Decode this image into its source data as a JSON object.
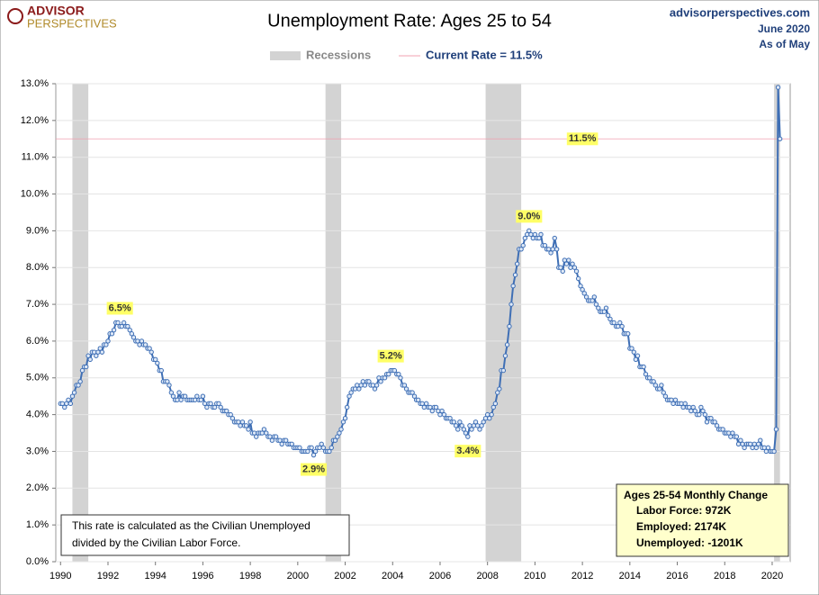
{
  "chart_data": {
    "type": "line",
    "title": "Unemployment Rate: Ages 25 to 54",
    "brand": {
      "top": "ADVISOR",
      "bottom": "PERSPECTIVES"
    },
    "source": {
      "site": "advisorperspectives.com",
      "date": "June 2020",
      "as_of": "As of May"
    },
    "recession_label": "Recessions",
    "recession_color": "#d3d3d3",
    "recessions": [
      [
        1990.5,
        1991.17
      ],
      [
        2001.17,
        2001.83
      ],
      [
        2007.92,
        2009.42
      ],
      [
        2020.08,
        2020.33
      ]
    ],
    "current_rate": {
      "value": 11.5,
      "label": "Current Rate = 11.5%",
      "color": "#f0a0b0"
    },
    "color": "#3f6fb5",
    "grid": true,
    "xlim": [
      1989.8,
      2020.76
    ],
    "ylim": [
      0,
      13
    ],
    "xticks": [
      1990,
      1992,
      1994,
      1996,
      1998,
      2000,
      2002,
      2004,
      2006,
      2008,
      2010,
      2012,
      2014,
      2016,
      2018,
      2020
    ],
    "yticks": [
      {
        "value": 0,
        "label": "0.0%"
      },
      {
        "value": 1,
        "label": "1.0%"
      },
      {
        "value": 2,
        "label": "2.0%"
      },
      {
        "value": 3,
        "label": "3.0%"
      },
      {
        "value": 4,
        "label": "4.0%"
      },
      {
        "value": 5,
        "label": "5.0%"
      },
      {
        "value": 6,
        "label": "6.0%"
      },
      {
        "value": 7,
        "label": "7.0%"
      },
      {
        "value": 8,
        "label": "8.0%"
      },
      {
        "value": 9,
        "label": "9.0%"
      },
      {
        "value": 10,
        "label": "10.0%"
      },
      {
        "value": 11,
        "label": "11.0%"
      },
      {
        "value": 12,
        "label": "12.0%"
      },
      {
        "value": 13,
        "label": "13.0%"
      }
    ],
    "annotations": [
      {
        "x": 1992.5,
        "value": 6.5,
        "label": "6.5%",
        "position": "above"
      },
      {
        "x": 2000.67,
        "value": 2.9,
        "label": "2.9%",
        "position": "below"
      },
      {
        "x": 2003.92,
        "value": 5.2,
        "label": "5.2%",
        "position": "above"
      },
      {
        "x": 2007.17,
        "value": 3.4,
        "label": "3.4%",
        "position": "below"
      },
      {
        "x": 2009.75,
        "value": 9.0,
        "label": "9.0%",
        "position": "above"
      },
      {
        "x": 2012.0,
        "value": 11.5,
        "label": "11.5%",
        "position": "center"
      }
    ],
    "note": [
      "This rate is calculated as the Civilian Unemployed",
      "divided by the Civilian Labor Force."
    ],
    "change_box": [
      "Ages 25-54 Monthly Change",
      "Labor Force:  972K",
      "Employed:  2174K",
      "Unemployed:  -1201K"
    ],
    "x": [
      1990,
      1990.08,
      1990.17,
      1990.25,
      1990.33,
      1990.42,
      1990.5,
      1990.58,
      1990.67,
      1990.75,
      1990.83,
      1990.92,
      1991,
      1991.08,
      1991.17,
      1991.25,
      1991.33,
      1991.42,
      1991.5,
      1991.58,
      1991.67,
      1991.75,
      1991.83,
      1991.92,
      1992,
      1992.08,
      1992.17,
      1992.25,
      1992.33,
      1992.42,
      1992.5,
      1992.58,
      1992.67,
      1992.75,
      1992.83,
      1992.92,
      1993,
      1993.08,
      1993.17,
      1993.25,
      1993.33,
      1993.42,
      1993.5,
      1993.58,
      1993.67,
      1993.75,
      1993.83,
      1993.92,
      1994,
      1994.08,
      1994.17,
      1994.25,
      1994.33,
      1994.42,
      1994.5,
      1994.58,
      1994.67,
      1994.75,
      1994.83,
      1994.92,
      1995,
      1995.08,
      1995.17,
      1995.25,
      1995.33,
      1995.42,
      1995.5,
      1995.58,
      1995.67,
      1995.75,
      1995.83,
      1995.92,
      1996,
      1996.08,
      1996.17,
      1996.25,
      1996.33,
      1996.42,
      1996.5,
      1996.58,
      1996.67,
      1996.75,
      1996.83,
      1996.92,
      1997,
      1997.08,
      1997.17,
      1997.25,
      1997.33,
      1997.42,
      1997.5,
      1997.58,
      1997.67,
      1997.75,
      1997.83,
      1997.92,
      1998,
      1998.08,
      1998.17,
      1998.25,
      1998.33,
      1998.42,
      1998.5,
      1998.58,
      1998.67,
      1998.75,
      1998.83,
      1998.92,
      1999,
      1999.08,
      1999.17,
      1999.25,
      1999.33,
      1999.42,
      1999.5,
      1999.58,
      1999.67,
      1999.75,
      1999.83,
      1999.92,
      2000,
      2000.08,
      2000.17,
      2000.25,
      2000.33,
      2000.42,
      2000.5,
      2000.58,
      2000.67,
      2000.75,
      2000.83,
      2000.92,
      2001,
      2001.08,
      2001.17,
      2001.25,
      2001.33,
      2001.42,
      2001.5,
      2001.58,
      2001.67,
      2001.75,
      2001.83,
      2001.92,
      2002,
      2002.08,
      2002.17,
      2002.25,
      2002.33,
      2002.42,
      2002.5,
      2002.58,
      2002.67,
      2002.75,
      2002.83,
      2002.92,
      2003,
      2003.08,
      2003.17,
      2003.25,
      2003.33,
      2003.42,
      2003.5,
      2003.58,
      2003.67,
      2003.75,
      2003.83,
      2003.92,
      2004,
      2004.08,
      2004.17,
      2004.25,
      2004.33,
      2004.42,
      2004.5,
      2004.58,
      2004.67,
      2004.75,
      2004.83,
      2004.92,
      2005,
      2005.08,
      2005.17,
      2005.25,
      2005.33,
      2005.42,
      2005.5,
      2005.58,
      2005.67,
      2005.75,
      2005.83,
      2005.92,
      2006,
      2006.08,
      2006.17,
      2006.25,
      2006.33,
      2006.42,
      2006.5,
      2006.58,
      2006.67,
      2006.75,
      2006.83,
      2006.92,
      2007,
      2007.08,
      2007.17,
      2007.25,
      2007.33,
      2007.42,
      2007.5,
      2007.58,
      2007.67,
      2007.75,
      2007.83,
      2007.92,
      2008,
      2008.08,
      2008.17,
      2008.25,
      2008.33,
      2008.42,
      2008.5,
      2008.58,
      2008.67,
      2008.75,
      2008.83,
      2008.92,
      2009,
      2009.08,
      2009.17,
      2009.25,
      2009.33,
      2009.42,
      2009.5,
      2009.58,
      2009.67,
      2009.75,
      2009.83,
      2009.92,
      2010,
      2010.08,
      2010.17,
      2010.25,
      2010.33,
      2010.42,
      2010.5,
      2010.58,
      2010.67,
      2010.75,
      2010.83,
      2010.92,
      2011,
      2011.08,
      2011.17,
      2011.25,
      2011.33,
      2011.42,
      2011.5,
      2011.58,
      2011.67,
      2011.75,
      2011.83,
      2011.92,
      2012,
      2012.08,
      2012.17,
      2012.25,
      2012.33,
      2012.42,
      2012.5,
      2012.58,
      2012.67,
      2012.75,
      2012.83,
      2012.92,
      2013,
      2013.08,
      2013.17,
      2013.25,
      2013.33,
      2013.42,
      2013.5,
      2013.58,
      2013.67,
      2013.75,
      2013.83,
      2013.92,
      2014,
      2014.08,
      2014.17,
      2014.25,
      2014.33,
      2014.42,
      2014.5,
      2014.58,
      2014.67,
      2014.75,
      2014.83,
      2014.92,
      2015,
      2015.08,
      2015.17,
      2015.25,
      2015.33,
      2015.42,
      2015.5,
      2015.58,
      2015.67,
      2015.75,
      2015.83,
      2015.92,
      2016,
      2016.08,
      2016.17,
      2016.25,
      2016.33,
      2016.42,
      2016.5,
      2016.58,
      2016.67,
      2016.75,
      2016.83,
      2016.92,
      2017,
      2017.08,
      2017.17,
      2017.25,
      2017.33,
      2017.42,
      2017.5,
      2017.58,
      2017.67,
      2017.75,
      2017.83,
      2017.92,
      2018,
      2018.08,
      2018.17,
      2018.25,
      2018.33,
      2018.42,
      2018.5,
      2018.58,
      2018.67,
      2018.75,
      2018.83,
      2018.92,
      2019,
      2019.08,
      2019.17,
      2019.25,
      2019.33,
      2019.42,
      2019.5,
      2019.58,
      2019.67,
      2019.75,
      2019.83,
      2019.92,
      2020,
      2020.08,
      2020.17,
      2020.25,
      2020.33
    ],
    "values": [
      4.3,
      4.3,
      4.2,
      4.3,
      4.4,
      4.3,
      4.5,
      4.6,
      4.8,
      4.8,
      4.9,
      5.2,
      5.3,
      5.3,
      5.6,
      5.5,
      5.7,
      5.7,
      5.6,
      5.7,
      5.8,
      5.7,
      5.9,
      5.9,
      6.0,
      6.2,
      6.2,
      6.3,
      6.5,
      6.5,
      6.4,
      6.4,
      6.5,
      6.4,
      6.4,
      6.3,
      6.2,
      6.1,
      6.0,
      6.0,
      5.9,
      6.0,
      5.9,
      5.9,
      5.8,
      5.8,
      5.7,
      5.5,
      5.5,
      5.4,
      5.2,
      5.2,
      4.9,
      4.9,
      4.9,
      4.8,
      4.6,
      4.5,
      4.4,
      4.4,
      4.6,
      4.4,
      4.5,
      4.5,
      4.4,
      4.4,
      4.4,
      4.4,
      4.4,
      4.5,
      4.4,
      4.4,
      4.5,
      4.3,
      4.2,
      4.3,
      4.3,
      4.2,
      4.2,
      4.3,
      4.3,
      4.2,
      4.1,
      4.1,
      4.1,
      4.0,
      4.0,
      3.9,
      3.8,
      3.8,
      3.8,
      3.7,
      3.8,
      3.7,
      3.7,
      3.6,
      3.8,
      3.5,
      3.5,
      3.4,
      3.5,
      3.5,
      3.5,
      3.6,
      3.5,
      3.4,
      3.4,
      3.3,
      3.4,
      3.4,
      3.3,
      3.3,
      3.2,
      3.3,
      3.3,
      3.2,
      3.2,
      3.2,
      3.1,
      3.1,
      3.1,
      3.1,
      3.0,
      3.0,
      3.0,
      3.0,
      3.1,
      3.1,
      2.9,
      3.0,
      3.1,
      3.1,
      3.2,
      3.1,
      3.0,
      3.0,
      3.0,
      3.1,
      3.3,
      3.3,
      3.4,
      3.5,
      3.6,
      3.8,
      3.9,
      4.2,
      4.5,
      4.6,
      4.7,
      4.7,
      4.8,
      4.7,
      4.8,
      4.9,
      4.8,
      4.9,
      4.9,
      4.8,
      4.8,
      4.7,
      4.8,
      5.0,
      4.9,
      5.0,
      5.0,
      5.1,
      5.1,
      5.2,
      5.2,
      5.2,
      5.1,
      5.1,
      5.0,
      4.8,
      4.8,
      4.7,
      4.6,
      4.6,
      4.6,
      4.5,
      4.4,
      4.4,
      4.3,
      4.3,
      4.2,
      4.3,
      4.2,
      4.2,
      4.1,
      4.2,
      4.2,
      4.1,
      4.0,
      4.1,
      4.0,
      3.9,
      3.9,
      3.9,
      3.8,
      3.8,
      3.7,
      3.6,
      3.8,
      3.7,
      3.6,
      3.5,
      3.4,
      3.7,
      3.6,
      3.7,
      3.8,
      3.7,
      3.6,
      3.7,
      3.8,
      3.9,
      4.0,
      3.9,
      4.0,
      4.2,
      4.3,
      4.6,
      4.7,
      5.2,
      5.2,
      5.6,
      5.9,
      6.4,
      7.0,
      7.5,
      7.8,
      8.1,
      8.5,
      8.5,
      8.6,
      8.8,
      8.9,
      9.0,
      8.9,
      8.8,
      8.9,
      8.8,
      8.8,
      8.9,
      8.6,
      8.6,
      8.5,
      8.5,
      8.4,
      8.5,
      8.8,
      8.5,
      8.0,
      8.0,
      7.9,
      8.2,
      8.1,
      8.2,
      8.0,
      8.1,
      8.0,
      7.9,
      7.7,
      7.5,
      7.4,
      7.3,
      7.2,
      7.1,
      7.1,
      7.1,
      7.2,
      7.0,
      6.9,
      6.8,
      6.8,
      6.8,
      6.9,
      6.7,
      6.6,
      6.5,
      6.5,
      6.4,
      6.4,
      6.5,
      6.4,
      6.2,
      6.2,
      6.2,
      5.8,
      5.8,
      5.7,
      5.5,
      5.6,
      5.3,
      5.3,
      5.3,
      5.1,
      5.0,
      5.0,
      4.9,
      4.9,
      4.8,
      4.7,
      4.7,
      4.8,
      4.6,
      4.5,
      4.4,
      4.4,
      4.4,
      4.3,
      4.4,
      4.3,
      4.3,
      4.3,
      4.2,
      4.3,
      4.2,
      4.2,
      4.1,
      4.2,
      4.1,
      4.0,
      4.0,
      4.2,
      4.1,
      4.0,
      3.8,
      3.9,
      3.9,
      3.8,
      3.8,
      3.7,
      3.6,
      3.6,
      3.6,
      3.5,
      3.5,
      3.5,
      3.4,
      3.5,
      3.4,
      3.4,
      3.2,
      3.3,
      3.2,
      3.1,
      3.2,
      3.2,
      3.2,
      3.1,
      3.2,
      3.1,
      3.2,
      3.3,
      3.1,
      3.1,
      3.0,
      3.1,
      3.0,
      3.0,
      3.0,
      3.6,
      12.9,
      11.5
    ]
  }
}
